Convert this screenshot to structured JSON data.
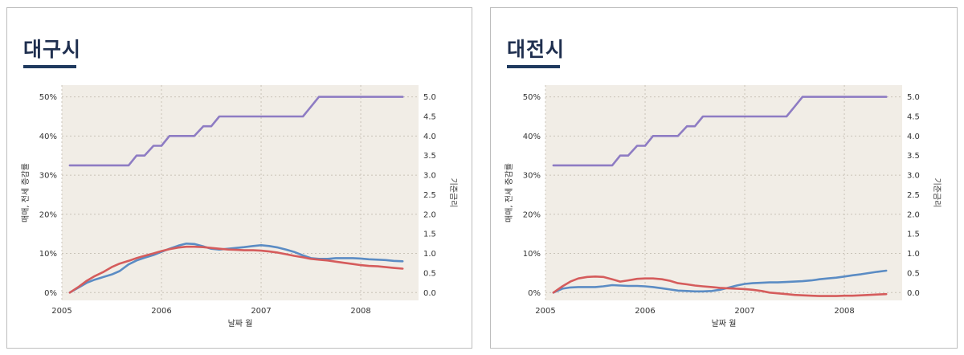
{
  "panels": [
    {
      "title": "대구시",
      "chart_data": {
        "type": "line",
        "xlabel": "날짜 월",
        "ylabel_left": "매매, 전세 증감률",
        "ylabel_right": "기준금리",
        "x_ticks": [
          "2005",
          "2006",
          "2007",
          "2008"
        ],
        "x_range": [
          2005.0,
          2008.58
        ],
        "y_left_range": [
          -0.02,
          0.53
        ],
        "y_left_ticks": [
          "0%",
          "10%",
          "20%",
          "30%",
          "40%",
          "50%"
        ],
        "y_right_range": [
          -0.2,
          5.3
        ],
        "y_right_ticks": [
          "0.0",
          "0.5",
          "1.0",
          "1.5",
          "2.0",
          "2.5",
          "3.0",
          "3.5",
          "4.0",
          "4.5",
          "5.0"
        ],
        "colors": {
          "rate": "#8e7cc3",
          "sale": "#5b8cc4",
          "jeonse": "#d55c5c"
        },
        "series": [
          {
            "name": "기준금리",
            "axis": "right",
            "step": true,
            "color_key": "rate",
            "x": [
              2005.08,
              2005.67,
              2005.75,
              2005.83,
              2005.92,
              2006.0,
              2006.08,
              2006.33,
              2006.42,
              2006.5,
              2006.58,
              2006.67,
              2007.42,
              2007.5,
              2007.58,
              2007.67,
              2008.42
            ],
            "y": [
              3.25,
              3.25,
              3.5,
              3.5,
              3.75,
              3.75,
              4.0,
              4.0,
              4.25,
              4.25,
              4.5,
              4.5,
              4.5,
              4.75,
              5.0,
              5.0,
              5.0
            ]
          },
          {
            "name": "매매 증감률",
            "axis": "left",
            "color_key": "sale",
            "x": [
              2005.08,
              2005.17,
              2005.25,
              2005.33,
              2005.42,
              2005.5,
              2005.58,
              2005.67,
              2005.75,
              2005.83,
              2005.92,
              2006.0,
              2006.08,
              2006.17,
              2006.25,
              2006.33,
              2006.42,
              2006.5,
              2006.58,
              2006.67,
              2006.75,
              2006.83,
              2006.92,
              2007.0,
              2007.08,
              2007.17,
              2007.25,
              2007.33,
              2007.42,
              2007.5,
              2007.58,
              2007.67,
              2007.75,
              2007.83,
              2007.92,
              2008.0,
              2008.08,
              2008.17,
              2008.25,
              2008.33,
              2008.42
            ],
            "y": [
              0.0,
              0.013,
              0.025,
              0.033,
              0.04,
              0.046,
              0.055,
              0.072,
              0.082,
              0.089,
              0.096,
              0.104,
              0.112,
              0.12,
              0.125,
              0.124,
              0.118,
              0.112,
              0.11,
              0.112,
              0.114,
              0.116,
              0.119,
              0.121,
              0.119,
              0.115,
              0.11,
              0.104,
              0.095,
              0.088,
              0.086,
              0.086,
              0.088,
              0.088,
              0.088,
              0.087,
              0.085,
              0.084,
              0.083,
              0.081,
              0.08
            ]
          },
          {
            "name": "전세 증감률",
            "axis": "left",
            "color_key": "jeonse",
            "x": [
              2005.08,
              2005.17,
              2005.25,
              2005.33,
              2005.42,
              2005.5,
              2005.58,
              2005.67,
              2005.75,
              2005.83,
              2005.92,
              2006.0,
              2006.08,
              2006.17,
              2006.25,
              2006.33,
              2006.42,
              2006.5,
              2006.58,
              2006.67,
              2006.75,
              2006.83,
              2006.92,
              2007.0,
              2007.08,
              2007.17,
              2007.25,
              2007.33,
              2007.42,
              2007.5,
              2007.58,
              2007.67,
              2007.75,
              2007.83,
              2007.92,
              2008.0,
              2008.08,
              2008.17,
              2008.25,
              2008.33,
              2008.42
            ],
            "y": [
              0.0,
              0.015,
              0.03,
              0.042,
              0.053,
              0.065,
              0.074,
              0.081,
              0.088,
              0.094,
              0.1,
              0.106,
              0.111,
              0.115,
              0.117,
              0.117,
              0.116,
              0.114,
              0.112,
              0.11,
              0.109,
              0.108,
              0.108,
              0.107,
              0.105,
              0.102,
              0.098,
              0.094,
              0.09,
              0.086,
              0.084,
              0.082,
              0.079,
              0.076,
              0.073,
              0.07,
              0.068,
              0.067,
              0.065,
              0.063,
              0.061
            ]
          }
        ]
      }
    },
    {
      "title": "대전시",
      "chart_data": {
        "type": "line",
        "xlabel": "날짜 월",
        "ylabel_left": "매매, 전세 증감률",
        "ylabel_right": "기준금리",
        "x_ticks": [
          "2005",
          "2006",
          "2007",
          "2008"
        ],
        "x_range": [
          2005.0,
          2008.58
        ],
        "y_left_range": [
          -0.02,
          0.53
        ],
        "y_left_ticks": [
          "0%",
          "10%",
          "20%",
          "30%",
          "40%",
          "50%"
        ],
        "y_right_range": [
          -0.2,
          5.3
        ],
        "y_right_ticks": [
          "0.0",
          "0.5",
          "1.0",
          "1.5",
          "2.0",
          "2.5",
          "3.0",
          "3.5",
          "4.0",
          "4.5",
          "5.0"
        ],
        "colors": {
          "rate": "#8e7cc3",
          "sale": "#5b8cc4",
          "jeonse": "#d55c5c"
        },
        "series": [
          {
            "name": "기준금리",
            "axis": "right",
            "step": true,
            "color_key": "rate",
            "x": [
              2005.08,
              2005.67,
              2005.75,
              2005.83,
              2005.92,
              2006.0,
              2006.08,
              2006.33,
              2006.42,
              2006.5,
              2006.58,
              2006.67,
              2007.42,
              2007.5,
              2007.58,
              2007.67,
              2008.42
            ],
            "y": [
              3.25,
              3.25,
              3.5,
              3.5,
              3.75,
              3.75,
              4.0,
              4.0,
              4.25,
              4.25,
              4.5,
              4.5,
              4.5,
              4.75,
              5.0,
              5.0,
              5.0
            ]
          },
          {
            "name": "매매 증감률",
            "axis": "left",
            "color_key": "sale",
            "x": [
              2005.08,
              2005.17,
              2005.25,
              2005.33,
              2005.42,
              2005.5,
              2005.58,
              2005.67,
              2005.75,
              2005.83,
              2005.92,
              2006.0,
              2006.08,
              2006.17,
              2006.25,
              2006.33,
              2006.42,
              2006.5,
              2006.58,
              2006.67,
              2006.75,
              2006.83,
              2006.92,
              2007.0,
              2007.08,
              2007.17,
              2007.25,
              2007.33,
              2007.42,
              2007.5,
              2007.58,
              2007.67,
              2007.75,
              2007.83,
              2007.92,
              2008.0,
              2008.08,
              2008.17,
              2008.25,
              2008.33,
              2008.42
            ],
            "y": [
              0.0,
              0.01,
              0.013,
              0.014,
              0.014,
              0.014,
              0.016,
              0.019,
              0.018,
              0.017,
              0.017,
              0.016,
              0.014,
              0.011,
              0.008,
              0.005,
              0.004,
              0.003,
              0.003,
              0.004,
              0.007,
              0.012,
              0.018,
              0.022,
              0.024,
              0.025,
              0.026,
              0.026,
              0.027,
              0.028,
              0.029,
              0.031,
              0.034,
              0.036,
              0.038,
              0.041,
              0.044,
              0.047,
              0.05,
              0.053,
              0.056
            ]
          },
          {
            "name": "전세 증감률",
            "axis": "left",
            "color_key": "jeonse",
            "x": [
              2005.08,
              2005.17,
              2005.25,
              2005.33,
              2005.42,
              2005.5,
              2005.58,
              2005.67,
              2005.75,
              2005.83,
              2005.92,
              2006.0,
              2006.08,
              2006.17,
              2006.25,
              2006.33,
              2006.42,
              2006.5,
              2006.58,
              2006.67,
              2006.75,
              2006.83,
              2006.92,
              2007.0,
              2007.08,
              2007.17,
              2007.25,
              2007.33,
              2007.42,
              2007.5,
              2007.58,
              2007.67,
              2007.75,
              2007.83,
              2007.92,
              2008.0,
              2008.08,
              2008.17,
              2008.25,
              2008.33,
              2008.42
            ],
            "y": [
              0.0,
              0.016,
              0.028,
              0.036,
              0.04,
              0.041,
              0.04,
              0.034,
              0.028,
              0.031,
              0.035,
              0.036,
              0.036,
              0.034,
              0.03,
              0.024,
              0.021,
              0.018,
              0.016,
              0.014,
              0.012,
              0.011,
              0.01,
              0.009,
              0.007,
              0.004,
              0.0,
              -0.002,
              -0.004,
              -0.006,
              -0.007,
              -0.008,
              -0.009,
              -0.009,
              -0.009,
              -0.008,
              -0.008,
              -0.007,
              -0.006,
              -0.005,
              -0.004
            ]
          }
        ]
      }
    }
  ]
}
